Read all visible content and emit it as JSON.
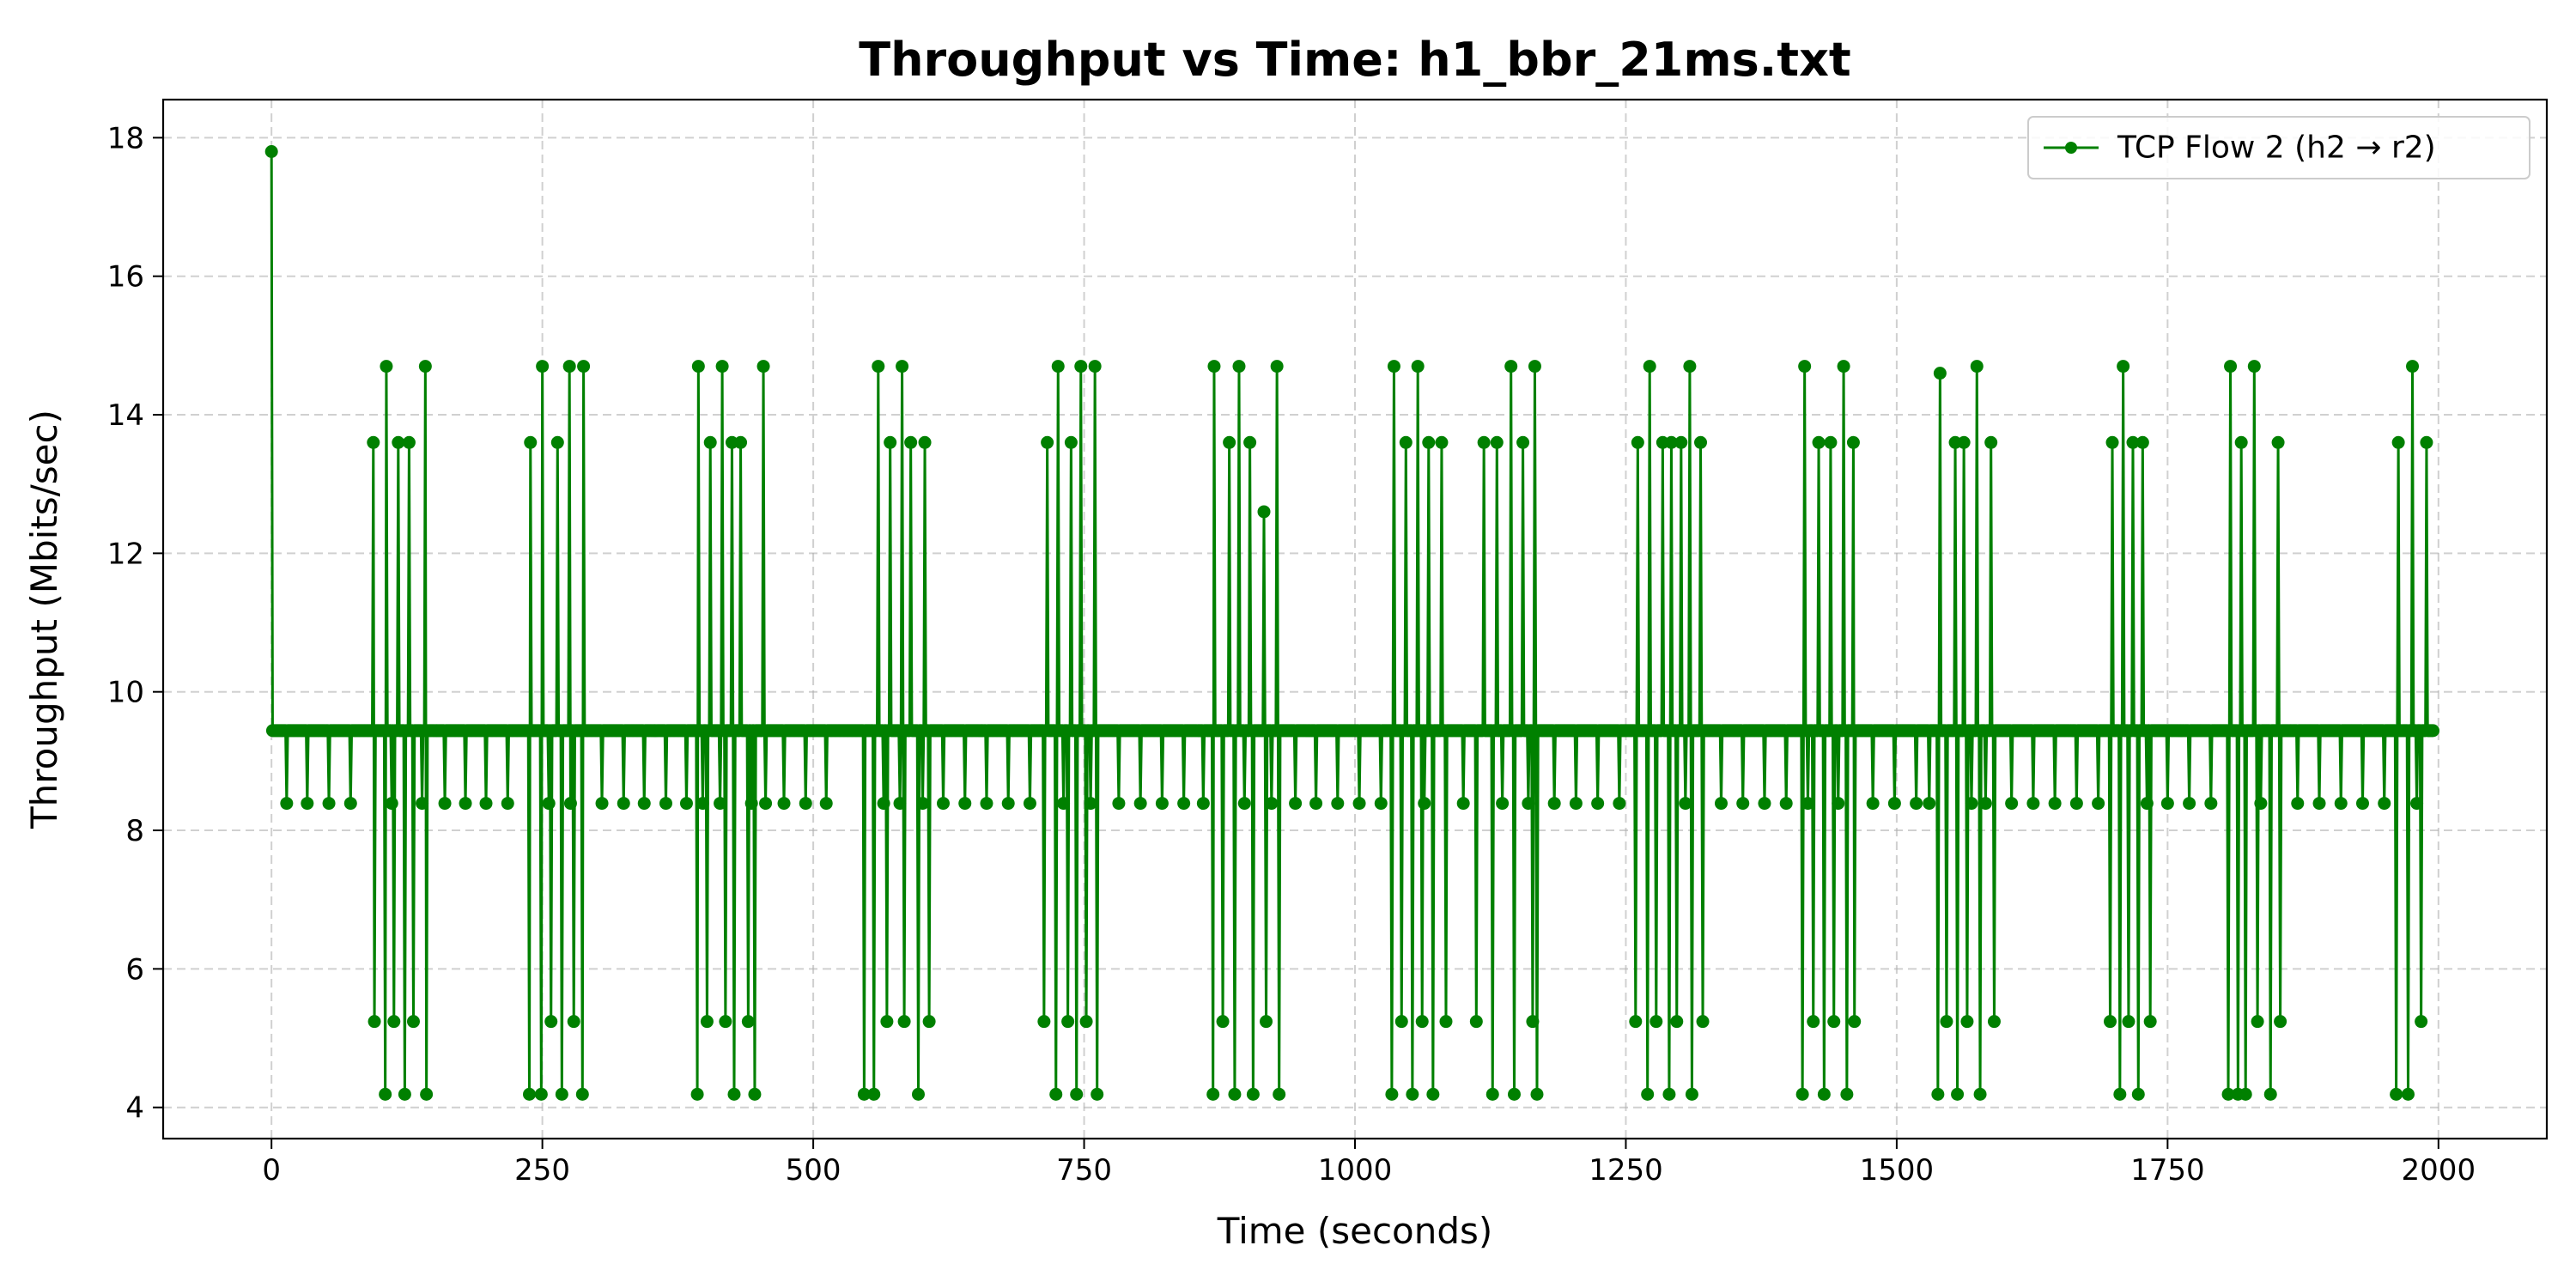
{
  "chart_data": {
    "type": "line",
    "title": "Throughput vs Time: h1_bbr_21ms.txt",
    "xlabel": "Time (seconds)",
    "ylabel": "Throughput (Mbits/sec)",
    "xlim": [
      -100,
      2100
    ],
    "ylim": [
      3.55,
      18.55
    ],
    "xticks": [
      0,
      250,
      500,
      750,
      1000,
      1250,
      1500,
      1750,
      2000
    ],
    "yticks": [
      4,
      6,
      8,
      10,
      12,
      14,
      16,
      18
    ],
    "grid": true,
    "legend_position": "top-right",
    "series": [
      {
        "name": "TCP Flow 2 (h2 → r2)",
        "color": "#008000",
        "marker": "circle",
        "baseline": 9.44,
        "sample_interval": 1,
        "duration": 1995,
        "events": [
          [
            0,
            17.8
          ],
          [
            14,
            8.39
          ],
          [
            33,
            8.39
          ],
          [
            53,
            8.39
          ],
          [
            73,
            8.39
          ],
          [
            94,
            13.6
          ],
          [
            95,
            5.24
          ],
          [
            105,
            4.19
          ],
          [
            106,
            14.7
          ],
          [
            111,
            8.39
          ],
          [
            113,
            5.24
          ],
          [
            117,
            13.6
          ],
          [
            123,
            4.19
          ],
          [
            127,
            13.6
          ],
          [
            131,
            5.24
          ],
          [
            139,
            8.39
          ],
          [
            142,
            14.7
          ],
          [
            143,
            4.19
          ],
          [
            160,
            8.39
          ],
          [
            179,
            8.39
          ],
          [
            198,
            8.39
          ],
          [
            218,
            8.39
          ],
          [
            238,
            4.19
          ],
          [
            239,
            13.6
          ],
          [
            249,
            4.19
          ],
          [
            250,
            14.7
          ],
          [
            256,
            8.39
          ],
          [
            258,
            5.24
          ],
          [
            264,
            13.6
          ],
          [
            268,
            4.19
          ],
          [
            275,
            14.7
          ],
          [
            276,
            8.39
          ],
          [
            279,
            5.24
          ],
          [
            287,
            4.19
          ],
          [
            288,
            14.7
          ],
          [
            305,
            8.39
          ],
          [
            325,
            8.39
          ],
          [
            344,
            8.39
          ],
          [
            364,
            8.39
          ],
          [
            383,
            8.39
          ],
          [
            393,
            4.19
          ],
          [
            394,
            14.7
          ],
          [
            398,
            8.39
          ],
          [
            402,
            5.24
          ],
          [
            405,
            13.6
          ],
          [
            414,
            8.39
          ],
          [
            416,
            14.7
          ],
          [
            419,
            5.24
          ],
          [
            425,
            13.6
          ],
          [
            427,
            4.19
          ],
          [
            433,
            13.6
          ],
          [
            440,
            5.24
          ],
          [
            443,
            8.39
          ],
          [
            446,
            4.19
          ],
          [
            454,
            14.7
          ],
          [
            456,
            8.39
          ],
          [
            473,
            8.39
          ],
          [
            493,
            8.39
          ],
          [
            512,
            8.39
          ],
          [
            547,
            4.19
          ],
          [
            556,
            4.19
          ],
          [
            560,
            14.7
          ],
          [
            565,
            8.39
          ],
          [
            568,
            5.24
          ],
          [
            571,
            13.6
          ],
          [
            580,
            8.39
          ],
          [
            582,
            14.7
          ],
          [
            584,
            5.24
          ],
          [
            590,
            13.6
          ],
          [
            597,
            4.19
          ],
          [
            601,
            8.39
          ],
          [
            603,
            13.6
          ],
          [
            607,
            5.24
          ],
          [
            620,
            8.39
          ],
          [
            640,
            8.39
          ],
          [
            660,
            8.39
          ],
          [
            680,
            8.39
          ],
          [
            700,
            8.39
          ],
          [
            713,
            5.24
          ],
          [
            716,
            13.6
          ],
          [
            724,
            4.19
          ],
          [
            726,
            14.7
          ],
          [
            731,
            8.39
          ],
          [
            735,
            5.24
          ],
          [
            738,
            13.6
          ],
          [
            743,
            4.19
          ],
          [
            747,
            14.7
          ],
          [
            752,
            5.24
          ],
          [
            756,
            8.39
          ],
          [
            760,
            14.7
          ],
          [
            762,
            4.19
          ],
          [
            782,
            8.39
          ],
          [
            802,
            8.39
          ],
          [
            822,
            8.39
          ],
          [
            842,
            8.39
          ],
          [
            860,
            8.39
          ],
          [
            869,
            4.19
          ],
          [
            870,
            14.7
          ],
          [
            878,
            5.24
          ],
          [
            884,
            13.6
          ],
          [
            889,
            4.19
          ],
          [
            893,
            14.7
          ],
          [
            898,
            8.39
          ],
          [
            903,
            13.6
          ],
          [
            906,
            4.19
          ],
          [
            916,
            12.6
          ],
          [
            918,
            5.24
          ],
          [
            923,
            8.39
          ],
          [
            928,
            14.7
          ],
          [
            930,
            4.19
          ],
          [
            945,
            8.39
          ],
          [
            964,
            8.39
          ],
          [
            984,
            8.39
          ],
          [
            1004,
            8.39
          ],
          [
            1024,
            8.39
          ],
          [
            1034,
            4.19
          ],
          [
            1036,
            14.7
          ],
          [
            1043,
            5.24
          ],
          [
            1047,
            13.6
          ],
          [
            1053,
            4.19
          ],
          [
            1058,
            14.7
          ],
          [
            1062,
            5.24
          ],
          [
            1064,
            8.39
          ],
          [
            1068,
            13.6
          ],
          [
            1072,
            4.19
          ],
          [
            1080,
            13.6
          ],
          [
            1084,
            5.24
          ],
          [
            1100,
            8.39
          ],
          [
            1112,
            5.24
          ],
          [
            1119,
            13.6
          ],
          [
            1127,
            4.19
          ],
          [
            1131,
            13.6
          ],
          [
            1136,
            8.39
          ],
          [
            1144,
            14.7
          ],
          [
            1147,
            4.19
          ],
          [
            1155,
            13.6
          ],
          [
            1160,
            8.39
          ],
          [
            1164,
            5.24
          ],
          [
            1166,
            14.7
          ],
          [
            1168,
            4.19
          ],
          [
            1184,
            8.39
          ],
          [
            1204,
            8.39
          ],
          [
            1224,
            8.39
          ],
          [
            1244,
            8.39
          ],
          [
            1259,
            5.24
          ],
          [
            1261,
            13.6
          ],
          [
            1270,
            4.19
          ],
          [
            1272,
            14.7
          ],
          [
            1278,
            5.24
          ],
          [
            1284,
            13.6
          ],
          [
            1290,
            4.19
          ],
          [
            1292,
            13.6
          ],
          [
            1297,
            5.24
          ],
          [
            1301,
            13.6
          ],
          [
            1305,
            8.39
          ],
          [
            1309,
            14.7
          ],
          [
            1311,
            4.19
          ],
          [
            1319,
            13.6
          ],
          [
            1321,
            5.24
          ],
          [
            1338,
            8.39
          ],
          [
            1358,
            8.39
          ],
          [
            1378,
            8.39
          ],
          [
            1398,
            8.39
          ],
          [
            1413,
            4.19
          ],
          [
            1415,
            14.7
          ],
          [
            1418,
            8.39
          ],
          [
            1423,
            5.24
          ],
          [
            1428,
            13.6
          ],
          [
            1433,
            4.19
          ],
          [
            1439,
            13.6
          ],
          [
            1442,
            5.24
          ],
          [
            1446,
            8.39
          ],
          [
            1451,
            14.7
          ],
          [
            1454,
            4.19
          ],
          [
            1460,
            13.6
          ],
          [
            1461,
            5.24
          ],
          [
            1478,
            8.39
          ],
          [
            1498,
            8.39
          ],
          [
            1518,
            8.39
          ],
          [
            1530,
            8.39
          ],
          [
            1538,
            4.19
          ],
          [
            1540,
            14.6
          ],
          [
            1546,
            5.24
          ],
          [
            1554,
            13.6
          ],
          [
            1556,
            4.19
          ],
          [
            1562,
            13.6
          ],
          [
            1565,
            5.24
          ],
          [
            1569,
            8.39
          ],
          [
            1574,
            14.7
          ],
          [
            1577,
            4.19
          ],
          [
            1582,
            8.39
          ],
          [
            1587,
            13.6
          ],
          [
            1590,
            5.24
          ],
          [
            1606,
            8.39
          ],
          [
            1626,
            8.39
          ],
          [
            1646,
            8.39
          ],
          [
            1666,
            8.39
          ],
          [
            1686,
            8.39
          ],
          [
            1697,
            5.24
          ],
          [
            1699,
            13.6
          ],
          [
            1706,
            4.19
          ],
          [
            1709,
            14.7
          ],
          [
            1714,
            5.24
          ],
          [
            1718,
            13.6
          ],
          [
            1723,
            4.19
          ],
          [
            1727,
            13.6
          ],
          [
            1731,
            8.39
          ],
          [
            1734,
            5.24
          ],
          [
            1750,
            8.39
          ],
          [
            1770,
            8.39
          ],
          [
            1790,
            8.39
          ],
          [
            1806,
            4.19
          ],
          [
            1808,
            14.7
          ],
          [
            1815,
            4.19
          ],
          [
            1818,
            13.6
          ],
          [
            1822,
            4.19
          ],
          [
            1830,
            14.7
          ],
          [
            1833,
            5.24
          ],
          [
            1836,
            8.39
          ],
          [
            1845,
            4.19
          ],
          [
            1852,
            13.6
          ],
          [
            1854,
            5.24
          ],
          [
            1870,
            8.39
          ],
          [
            1890,
            8.39
          ],
          [
            1910,
            8.39
          ],
          [
            1930,
            8.39
          ],
          [
            1950,
            8.39
          ],
          [
            1961,
            4.19
          ],
          [
            1963,
            13.6
          ],
          [
            1972,
            4.19
          ],
          [
            1976,
            14.7
          ],
          [
            1980,
            8.39
          ],
          [
            1984,
            5.24
          ],
          [
            1989,
            13.6
          ]
        ]
      }
    ]
  }
}
